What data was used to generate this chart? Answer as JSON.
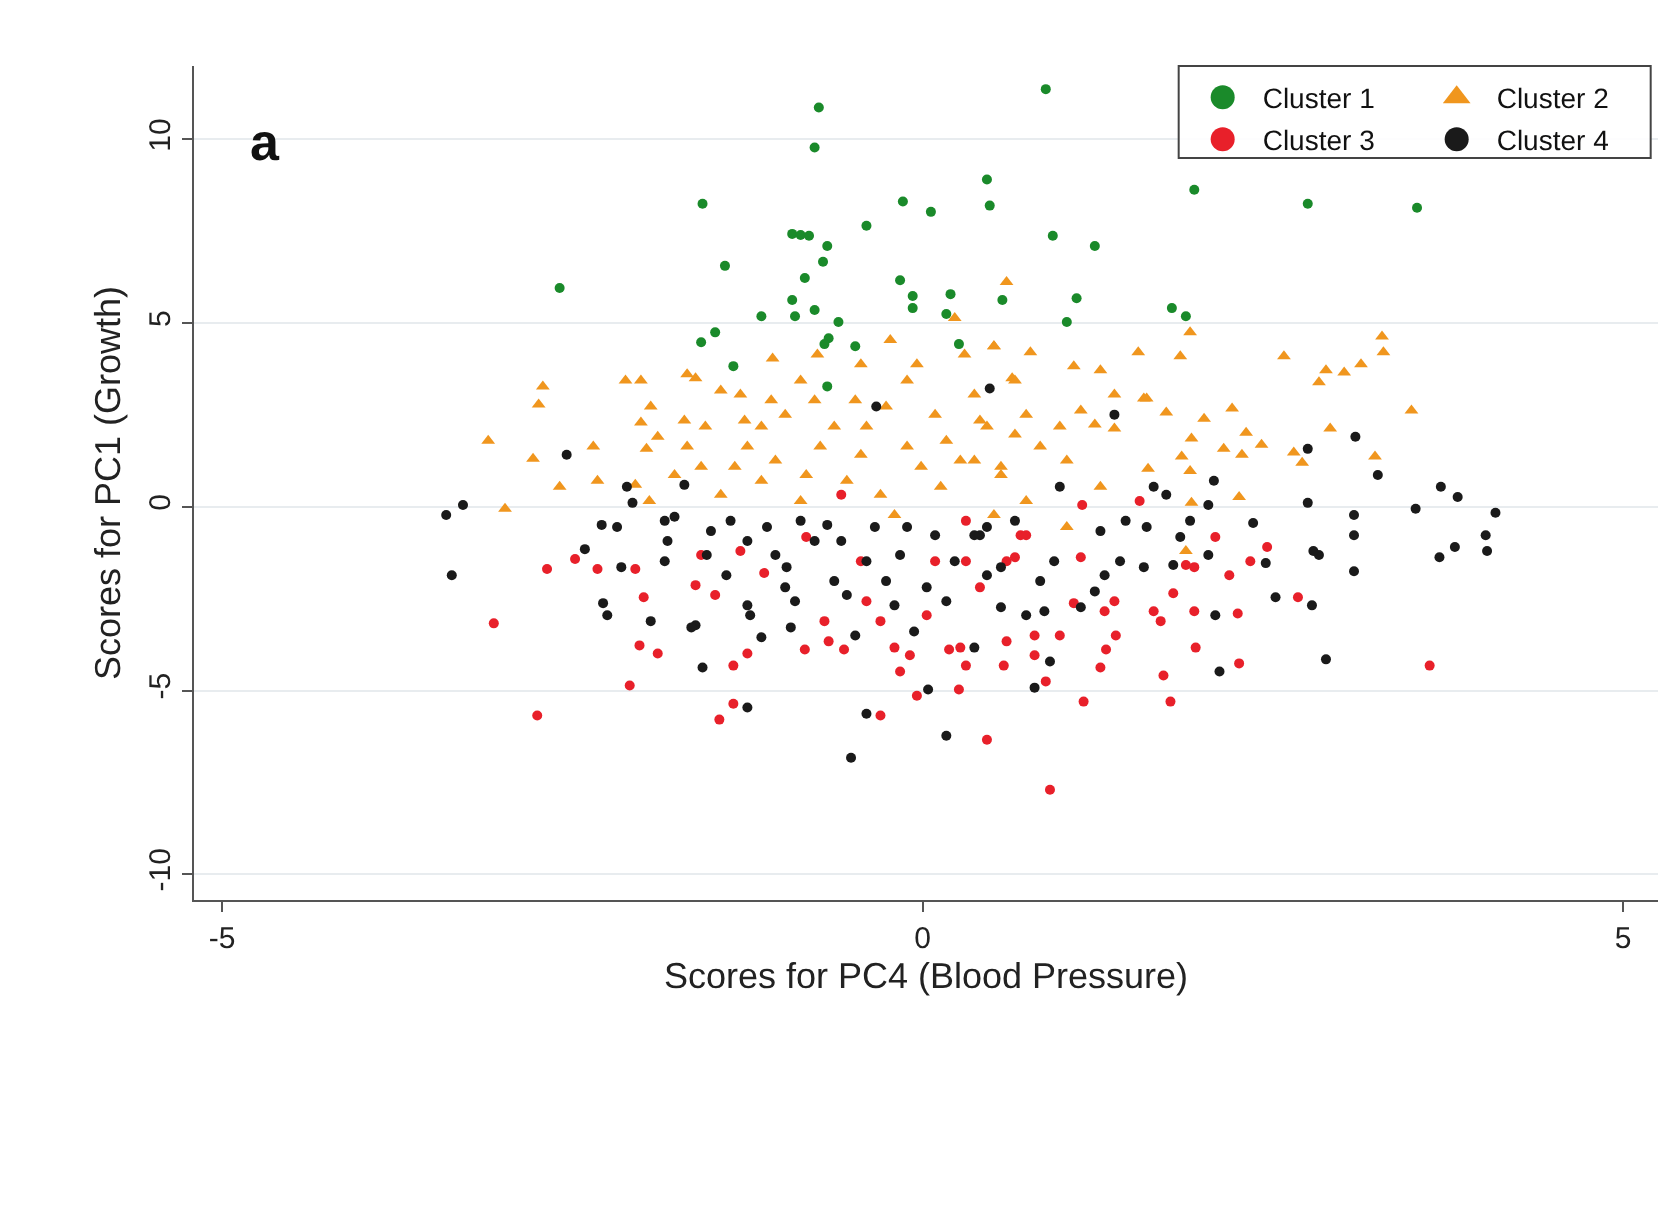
{
  "chart_data": {
    "type": "scatter",
    "xlabel": "Scores for PC4 (Blood Pressure)",
    "ylabel": "Scores for PC1 (Growth)",
    "annotations": [
      "a"
    ],
    "xlim": [
      -5.2,
      5.25
    ],
    "ylim": [
      -10.7,
      12
    ],
    "xticks": [
      -5,
      0,
      5
    ],
    "yticks": [
      -10,
      -5,
      0,
      5,
      10
    ],
    "grid": "y",
    "legend": "top right",
    "series": [
      {
        "name": "Cluster 1",
        "color": "#1a8a2a",
        "marker": "circle",
        "x": [
          -2.59,
          -1.57,
          -0.74,
          -0.77,
          0.88,
          -1.41,
          -0.93,
          -0.87,
          -0.81,
          -0.68,
          -0.71,
          -0.84,
          -0.93,
          -0.91,
          -1.15,
          -0.77,
          -0.6,
          -1.48,
          -1.58,
          -1.35,
          -0.67,
          -0.7,
          -0.48,
          -0.68,
          -0.4,
          -0.14,
          0.06,
          -0.16,
          -0.07,
          -0.07,
          0.2,
          0.17,
          0.26,
          0.46,
          0.48,
          0.57,
          0.93,
          1.23,
          1.1,
          1.03,
          1.78,
          1.88,
          1.94,
          2.75,
          3.53
        ],
        "values": [
          5.96,
          8.25,
          10.87,
          9.78,
          11.37,
          6.56,
          7.43,
          7.4,
          7.38,
          7.1,
          6.67,
          6.23,
          5.63,
          5.19,
          5.19,
          5.36,
          5.03,
          4.75,
          4.48,
          3.83,
          4.59,
          4.43,
          4.37,
          3.28,
          7.65,
          8.31,
          8.03,
          6.17,
          5.74,
          5.41,
          5.79,
          5.25,
          4.43,
          8.91,
          8.2,
          5.63,
          7.38,
          7.1,
          5.68,
          5.03,
          5.41,
          5.19,
          8.63,
          8.25,
          8.14
        ]
      },
      {
        "name": "Cluster 2",
        "color": "#f0961e",
        "marker": "triangle",
        "x": [
          0.6,
          1.91,
          3.28,
          3.29,
          2.58,
          2.88,
          3.01,
          3.13,
          2.83,
          1.54,
          1.84,
          0.77,
          0.51,
          0.64,
          1.08,
          1.27,
          1.37,
          1.58,
          2.21,
          3.49,
          2.91,
          3.23,
          2.65,
          2.71,
          2.42,
          2.28,
          2.31,
          2.15,
          2.01,
          1.92,
          1.85,
          1.61,
          1.74,
          1.6,
          2.26,
          1.92,
          1.91,
          1.13,
          1.23,
          1.37,
          0.84,
          1.03,
          1.27,
          0.74,
          0.56,
          0.37,
          0.41,
          0.66,
          0.98,
          1.88,
          1.03,
          -3.1,
          -2.98,
          -2.71,
          -2.74,
          -2.78,
          -2.59,
          -2.35,
          -2.32,
          -2.12,
          -2.01,
          -1.94,
          -2.01,
          -1.89,
          -1.97,
          -1.95,
          -2.05,
          -1.77,
          -1.68,
          -1.62,
          -1.7,
          -1.55,
          -1.68,
          -1.58,
          -1.44,
          -1.3,
          -1.27,
          -1.25,
          -1.34,
          -1.44,
          -1.15,
          -1.08,
          -0.98,
          -1.05,
          -1.15,
          -0.87,
          -0.77,
          -0.63,
          -0.73,
          -0.83,
          -0.87,
          -0.48,
          -0.4,
          -0.44,
          -0.54,
          -0.3,
          -0.26,
          -0.11,
          -0.11,
          -0.01,
          -0.2,
          0.09,
          0.17,
          0.27,
          0.13,
          0.37,
          0.46,
          0.56,
          0.66,
          0.74,
          0.51,
          -1.07,
          -0.75,
          -0.23,
          -0.44,
          -0.04,
          0.3,
          0.51,
          0.23
        ],
        "values": [
          6.12,
          4.75,
          4.64,
          4.21,
          4.1,
          3.72,
          3.66,
          3.88,
          3.39,
          4.21,
          4.1,
          4.21,
          4.37,
          3.5,
          3.83,
          3.72,
          3.06,
          2.95,
          2.68,
          2.62,
          2.13,
          1.37,
          1.48,
          1.2,
          1.69,
          1.42,
          2.02,
          1.58,
          2.4,
          1.86,
          1.37,
          1.04,
          2.57,
          2.95,
          0.27,
          0.11,
          0.98,
          2.62,
          2.24,
          2.13,
          1.64,
          1.26,
          0.55,
          0.16,
          1.09,
          1.26,
          2.35,
          1.97,
          2.19,
          -1.2,
          -0.55,
          1.8,
          -0.05,
          3.28,
          2.79,
          1.31,
          0.55,
          1.64,
          0.71,
          3.44,
          3.44,
          2.73,
          2.3,
          1.91,
          1.58,
          0.16,
          0.6,
          0.87,
          3.61,
          3.5,
          2.35,
          2.19,
          1.64,
          1.09,
          3.17,
          3.06,
          2.35,
          1.64,
          1.09,
          0.33,
          2.19,
          2.9,
          2.51,
          1.26,
          0.71,
          3.44,
          2.9,
          2.19,
          1.64,
          0.87,
          0.16,
          2.9,
          2.19,
          1.42,
          0.71,
          0.33,
          2.73,
          3.44,
          1.64,
          1.09,
          -0.22,
          2.51,
          1.8,
          1.26,
          0.55,
          3.06,
          2.19,
          0.87,
          3.44,
          2.51,
          -0.22,
          4.04,
          4.15,
          4.54,
          3.88,
          3.88,
          4.15,
          4.37,
          5.14
        ]
      },
      {
        "name": "Cluster 3",
        "color": "#e8202a",
        "marker": "circle",
        "x": [
          -3.06,
          -2.68,
          -2.48,
          -2.32,
          -2.05,
          -1.99,
          -2.02,
          -1.89,
          -2.09,
          -2.75,
          -1.62,
          -1.48,
          -1.35,
          -1.25,
          -1.35,
          -1.45,
          -1.58,
          -1.3,
          -1.13,
          -0.84,
          -0.7,
          -0.67,
          -0.56,
          -0.3,
          -0.83,
          -0.58,
          -0.44,
          -0.4,
          -0.2,
          -0.16,
          -0.09,
          -0.3,
          0.03,
          0.09,
          0.19,
          0.27,
          0.26,
          -0.04,
          0.31,
          0.41,
          0.31,
          0.46,
          0.58,
          0.6,
          0.6,
          0.7,
          0.8,
          0.31,
          0.91,
          1.15,
          1.77,
          1.72,
          1.27,
          1.38,
          1.31,
          1.3,
          1.08,
          0.98,
          0.8,
          0.88,
          1.65,
          1.7,
          1.94,
          1.95,
          2.25,
          2.26,
          1.79,
          2.19,
          2.34,
          2.46,
          2.68,
          3.62,
          2.09,
          1.94,
          1.88,
          1.14,
          1.55,
          1.13,
          0.66,
          0.74,
          1.37
        ],
        "values": [
          -3.17,
          -1.69,
          -1.42,
          -1.69,
          -1.69,
          -2.46,
          -3.77,
          -3.99,
          -4.86,
          -5.68,
          -2.13,
          -2.4,
          -4.32,
          -3.99,
          -5.36,
          -5.79,
          -1.31,
          -1.2,
          -1.8,
          -3.88,
          -3.11,
          -3.66,
          -3.88,
          -5.68,
          -0.82,
          0.33,
          -1.48,
          -2.57,
          -3.83,
          -4.48,
          -4.04,
          -3.11,
          -2.95,
          -1.48,
          -3.88,
          -3.83,
          -4.97,
          -5.14,
          -1.48,
          -2.19,
          -4.32,
          -6.34,
          -4.32,
          -3.66,
          -1.48,
          -0.77,
          -4.04,
          -0.38,
          -7.7,
          -5.3,
          -5.3,
          -4.59,
          -4.37,
          -3.5,
          -3.88,
          -2.84,
          -2.62,
          -3.5,
          -3.5,
          -4.75,
          -2.84,
          -3.11,
          -2.84,
          -3.83,
          -2.9,
          -4.26,
          -2.35,
          -1.86,
          -1.48,
          -1.09,
          -2.46,
          -4.32,
          -0.82,
          -1.64,
          -1.58,
          0.05,
          0.16,
          -1.37,
          -1.37,
          -0.77,
          -2.57
        ]
      },
      {
        "name": "Cluster 4",
        "color": "#1a1a1a",
        "marker": "circle",
        "x": [
          4.09,
          4.02,
          4.03,
          3.82,
          3.7,
          3.52,
          3.8,
          3.69,
          3.25,
          3.09,
          3.08,
          3.08,
          3.08,
          2.88,
          2.83,
          2.79,
          2.75,
          2.75,
          2.78,
          2.52,
          2.45,
          2.36,
          2.12,
          2.09,
          2.04,
          2.08,
          2.04,
          1.91,
          1.74,
          1.65,
          1.45,
          1.6,
          1.41,
          1.58,
          1.84,
          1.79,
          1.27,
          1.3,
          1.23,
          1.13,
          0.87,
          0.8,
          0.91,
          0.84,
          0.94,
          0.98,
          1.37,
          0.48,
          0.56,
          0.41,
          0.74,
          0.37,
          0.46,
          -3.4,
          -3.28,
          -3.36,
          -2.54,
          -2.41,
          -2.29,
          -2.18,
          -2.15,
          -2.28,
          -2.25,
          -2.07,
          -2.11,
          -1.94,
          -1.84,
          -1.82,
          -1.84,
          -1.77,
          -1.7,
          -1.62,
          -1.65,
          -1.57,
          -1.51,
          -1.54,
          -1.4,
          -1.37,
          -1.25,
          -1.23,
          -1.15,
          -1.25,
          -1.11,
          -1.05,
          -0.97,
          -0.98,
          -0.91,
          -0.94,
          -0.87,
          -0.77,
          -0.68,
          -0.58,
          -0.63,
          -0.54,
          -0.48,
          -0.4,
          -0.34,
          -0.26,
          -0.16,
          -0.2,
          -0.06,
          -0.11,
          0.03,
          0.09,
          0.23,
          0.17,
          0.37,
          0.46,
          0.56,
          0.66,
          -0.33,
          -0.4,
          0.17,
          -0.51,
          0.04,
          -1.25
        ],
        "values": [
          -0.16,
          -0.77,
          -1.2,
          0.27,
          0.55,
          -0.05,
          -1.09,
          -1.37,
          0.87,
          1.91,
          -0.22,
          -0.77,
          -1.75,
          -4.15,
          -1.31,
          -1.2,
          0.11,
          1.58,
          -2.68,
          -2.46,
          -1.53,
          -0.44,
          -4.48,
          -2.95,
          -1.31,
          0.71,
          0.05,
          -0.38,
          0.33,
          0.55,
          -0.38,
          -0.55,
          -1.48,
          -1.64,
          -0.82,
          -1.58,
          -0.66,
          -1.86,
          -2.3,
          -2.73,
          -2.84,
          -4.92,
          -4.21,
          -2.02,
          -1.48,
          0.55,
          2.51,
          3.22,
          -1.64,
          -0.77,
          -2.95,
          -3.83,
          -0.55,
          -0.22,
          0.05,
          -1.86,
          1.42,
          -1.15,
          -0.49,
          -0.55,
          -1.64,
          -2.62,
          -2.95,
          0.11,
          0.55,
          -3.11,
          -1.48,
          -0.93,
          -0.38,
          -0.27,
          0.6,
          -3.22,
          -3.28,
          -4.37,
          -0.66,
          -1.31,
          -1.86,
          -0.38,
          -2.68,
          -2.95,
          -3.55,
          -0.93,
          -0.55,
          -1.31,
          -1.64,
          -2.19,
          -2.57,
          -3.28,
          -0.38,
          -0.93,
          -0.49,
          -0.93,
          -2.02,
          -2.4,
          -3.5,
          -1.48,
          -0.55,
          -2.02,
          -1.31,
          -2.68,
          -3.39,
          -0.55,
          -2.19,
          -0.77,
          -1.48,
          -2.57,
          -0.77,
          -1.86,
          -2.73,
          -0.38,
          2.73,
          -5.63,
          -6.23,
          -6.83,
          -4.97,
          -5.46
        ]
      }
    ]
  }
}
